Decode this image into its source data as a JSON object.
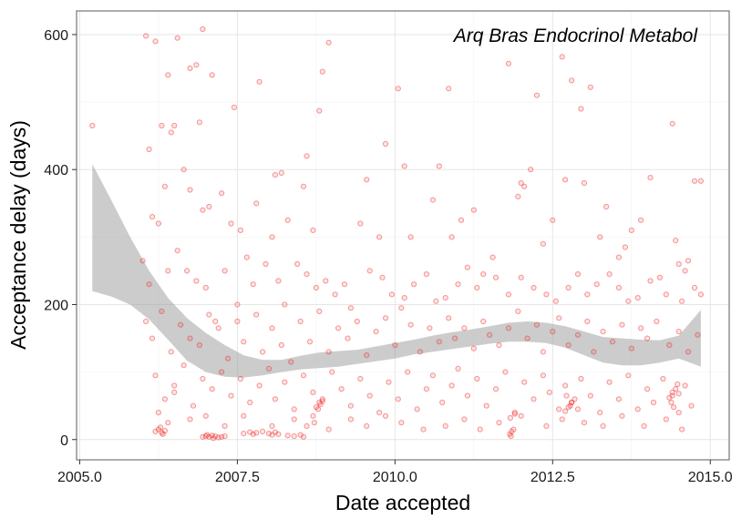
{
  "chart_data": {
    "type": "scatter",
    "title": "Arq Bras Endocrinol Metabol",
    "xlabel": "Date accepted",
    "ylabel": "Acceptance delay (days)",
    "xlim": [
      2004.95,
      2015.3
    ],
    "ylim": [
      -30,
      635
    ],
    "x_ticks": [
      2005.0,
      2007.5,
      2010.0,
      2012.5,
      2015.0
    ],
    "x_tick_labels": [
      "2005.0",
      "2007.5",
      "2010.0",
      "2012.5",
      "2015.0"
    ],
    "y_ticks": [
      0,
      200,
      400,
      600
    ],
    "y_tick_labels": [
      "0",
      "200",
      "400",
      "600"
    ],
    "grid": true,
    "point_color": "#ee2222",
    "band_color": "#999999",
    "points": [
      [
        2005.2,
        465
      ],
      [
        2006.05,
        598
      ],
      [
        2006.2,
        590
      ],
      [
        2006.4,
        540
      ],
      [
        2006.55,
        595
      ],
      [
        2006.95,
        608
      ],
      [
        2006.85,
        555
      ],
      [
        2006.75,
        550
      ],
      [
        2007.1,
        540
      ],
      [
        2007.45,
        492
      ],
      [
        2007.85,
        530
      ],
      [
        2008.85,
        545
      ],
      [
        2008.95,
        588
      ],
      [
        2010.05,
        520
      ],
      [
        2010.85,
        520
      ],
      [
        2011.8,
        557
      ],
      [
        2012.25,
        510
      ],
      [
        2012.65,
        567
      ],
      [
        2012.8,
        532
      ],
      [
        2012.95,
        490
      ],
      [
        2013.1,
        522
      ],
      [
        2014.4,
        468
      ],
      [
        2008.8,
        487
      ],
      [
        2009.85,
        438
      ],
      [
        2010.15,
        405
      ],
      [
        2010.7,
        405
      ],
      [
        2012.15,
        400
      ],
      [
        2014.05,
        388
      ],
      [
        2014.75,
        383
      ],
      [
        2014.85,
        383
      ],
      [
        2013.35,
        345
      ],
      [
        2013.55,
        270
      ],
      [
        2013.9,
        325
      ],
      [
        2014.45,
        295
      ],
      [
        2008.1,
        392
      ],
      [
        2008.2,
        395
      ],
      [
        2006.1,
        430
      ],
      [
        2006.3,
        465
      ],
      [
        2006.45,
        455
      ],
      [
        2006.5,
        465
      ],
      [
        2006.65,
        400
      ],
      [
        2006.9,
        470
      ],
      [
        2006.35,
        375
      ],
      [
        2006.75,
        370
      ],
      [
        2006.95,
        340
      ],
      [
        2007.05,
        345
      ],
      [
        2007.25,
        365
      ],
      [
        2007.4,
        320
      ],
      [
        2007.55,
        310
      ],
      [
        2007.8,
        350
      ],
      [
        2008.05,
        300
      ],
      [
        2008.3,
        325
      ],
      [
        2008.55,
        375
      ],
      [
        2008.7,
        310
      ],
      [
        2008.6,
        420
      ],
      [
        2009.45,
        320
      ],
      [
        2009.55,
        385
      ],
      [
        2009.75,
        300
      ],
      [
        2010.25,
        300
      ],
      [
        2010.6,
        355
      ],
      [
        2010.9,
        300
      ],
      [
        2011.05,
        325
      ],
      [
        2011.25,
        340
      ],
      [
        2011.55,
        270
      ],
      [
        2011.95,
        360
      ],
      [
        2012.0,
        380
      ],
      [
        2012.05,
        375
      ],
      [
        2012.35,
        290
      ],
      [
        2012.5,
        325
      ],
      [
        2012.7,
        385
      ],
      [
        2013.0,
        380
      ],
      [
        2013.25,
        300
      ],
      [
        2013.65,
        285
      ],
      [
        2013.75,
        310
      ],
      [
        2014.2,
        240
      ],
      [
        2014.5,
        260
      ],
      [
        2014.6,
        250
      ],
      [
        2014.65,
        265
      ],
      [
        2006.0,
        265
      ],
      [
        2006.1,
        230
      ],
      [
        2006.15,
        330
      ],
      [
        2006.25,
        320
      ],
      [
        2006.4,
        250
      ],
      [
        2006.55,
        280
      ],
      [
        2006.7,
        250
      ],
      [
        2006.85,
        235
      ],
      [
        2007.0,
        225
      ],
      [
        2007.15,
        175
      ],
      [
        2007.3,
        250
      ],
      [
        2007.5,
        200
      ],
      [
        2007.65,
        270
      ],
      [
        2007.75,
        230
      ],
      [
        2007.95,
        260
      ],
      [
        2008.15,
        235
      ],
      [
        2008.25,
        200
      ],
      [
        2008.45,
        260
      ],
      [
        2008.6,
        245
      ],
      [
        2008.75,
        225
      ],
      [
        2008.9,
        235
      ],
      [
        2009.05,
        215
      ],
      [
        2009.2,
        230
      ],
      [
        2009.3,
        195
      ],
      [
        2009.6,
        250
      ],
      [
        2009.8,
        240
      ],
      [
        2009.95,
        215
      ],
      [
        2010.15,
        210
      ],
      [
        2010.3,
        230
      ],
      [
        2010.5,
        245
      ],
      [
        2010.65,
        205
      ],
      [
        2010.8,
        210
      ],
      [
        2011.0,
        230
      ],
      [
        2011.15,
        255
      ],
      [
        2011.3,
        225
      ],
      [
        2011.4,
        245
      ],
      [
        2011.6,
        240
      ],
      [
        2011.8,
        215
      ],
      [
        2012.0,
        240
      ],
      [
        2012.2,
        225
      ],
      [
        2012.4,
        215
      ],
      [
        2012.55,
        205
      ],
      [
        2012.75,
        225
      ],
      [
        2012.9,
        245
      ],
      [
        2013.05,
        215
      ],
      [
        2013.2,
        230
      ],
      [
        2013.4,
        245
      ],
      [
        2013.55,
        225
      ],
      [
        2013.7,
        205
      ],
      [
        2013.85,
        210
      ],
      [
        2014.05,
        235
      ],
      [
        2014.3,
        215
      ],
      [
        2014.55,
        205
      ],
      [
        2014.75,
        225
      ],
      [
        2014.85,
        215
      ],
      [
        2006.05,
        175
      ],
      [
        2006.15,
        150
      ],
      [
        2006.3,
        190
      ],
      [
        2006.45,
        130
      ],
      [
        2006.6,
        170
      ],
      [
        2006.75,
        150
      ],
      [
        2006.9,
        140
      ],
      [
        2007.05,
        185
      ],
      [
        2007.2,
        165
      ],
      [
        2007.35,
        120
      ],
      [
        2007.5,
        175
      ],
      [
        2007.6,
        145
      ],
      [
        2007.8,
        185
      ],
      [
        2007.9,
        130
      ],
      [
        2008.05,
        165
      ],
      [
        2008.2,
        140
      ],
      [
        2008.35,
        115
      ],
      [
        2008.5,
        175
      ],
      [
        2008.65,
        145
      ],
      [
        2008.8,
        190
      ],
      [
        2008.95,
        130
      ],
      [
        2009.1,
        165
      ],
      [
        2009.25,
        150
      ],
      [
        2009.4,
        175
      ],
      [
        2009.55,
        125
      ],
      [
        2009.7,
        160
      ],
      [
        2009.85,
        180
      ],
      [
        2010.0,
        140
      ],
      [
        2010.1,
        195
      ],
      [
        2010.25,
        170
      ],
      [
        2010.4,
        130
      ],
      [
        2010.55,
        165
      ],
      [
        2010.7,
        145
      ],
      [
        2010.85,
        180
      ],
      [
        2010.95,
        150
      ],
      [
        2011.1,
        165
      ],
      [
        2011.25,
        135
      ],
      [
        2011.4,
        175
      ],
      [
        2011.5,
        155
      ],
      [
        2011.65,
        140
      ],
      [
        2011.8,
        165
      ],
      [
        2011.95,
        190
      ],
      [
        2012.1,
        150
      ],
      [
        2012.25,
        170
      ],
      [
        2012.35,
        130
      ],
      [
        2012.5,
        160
      ],
      [
        2012.6,
        180
      ],
      [
        2012.75,
        140
      ],
      [
        2012.9,
        155
      ],
      [
        2013.05,
        175
      ],
      [
        2013.15,
        130
      ],
      [
        2013.3,
        160
      ],
      [
        2013.45,
        145
      ],
      [
        2013.6,
        170
      ],
      [
        2013.75,
        135
      ],
      [
        2013.9,
        165
      ],
      [
        2014.0,
        150
      ],
      [
        2014.15,
        175
      ],
      [
        2014.35,
        140
      ],
      [
        2014.5,
        160
      ],
      [
        2014.65,
        130
      ],
      [
        2014.8,
        155
      ],
      [
        2006.2,
        95
      ],
      [
        2006.35,
        60
      ],
      [
        2006.5,
        80
      ],
      [
        2006.65,
        110
      ],
      [
        2006.8,
        50
      ],
      [
        2006.95,
        90
      ],
      [
        2007.1,
        75
      ],
      [
        2007.25,
        100
      ],
      [
        2007.4,
        65
      ],
      [
        2007.55,
        90
      ],
      [
        2007.7,
        55
      ],
      [
        2007.85,
        80
      ],
      [
        2008.0,
        105
      ],
      [
        2008.1,
        60
      ],
      [
        2008.25,
        85
      ],
      [
        2008.4,
        45
      ],
      [
        2008.55,
        95
      ],
      [
        2008.7,
        70
      ],
      [
        2008.85,
        60
      ],
      [
        2009.0,
        100
      ],
      [
        2009.15,
        75
      ],
      [
        2009.3,
        50
      ],
      [
        2009.45,
        90
      ],
      [
        2009.6,
        65
      ],
      [
        2009.75,
        40
      ],
      [
        2009.9,
        85
      ],
      [
        2010.05,
        60
      ],
      [
        2010.2,
        100
      ],
      [
        2010.35,
        45
      ],
      [
        2010.5,
        75
      ],
      [
        2010.6,
        95
      ],
      [
        2010.75,
        55
      ],
      [
        2010.9,
        80
      ],
      [
        2011.0,
        105
      ],
      [
        2011.15,
        65
      ],
      [
        2011.3,
        90
      ],
      [
        2011.45,
        50
      ],
      [
        2011.6,
        75
      ],
      [
        2011.75,
        100
      ],
      [
        2011.9,
        40
      ],
      [
        2012.05,
        85
      ],
      [
        2012.2,
        60
      ],
      [
        2012.35,
        95
      ],
      [
        2012.45,
        70
      ],
      [
        2012.6,
        45
      ],
      [
        2012.7,
        80
      ],
      [
        2012.8,
        55
      ],
      [
        2012.95,
        90
      ],
      [
        2013.1,
        65
      ],
      [
        2013.25,
        40
      ],
      [
        2013.4,
        85
      ],
      [
        2013.55,
        60
      ],
      [
        2013.7,
        95
      ],
      [
        2013.85,
        45
      ],
      [
        2014.0,
        75
      ],
      [
        2014.1,
        55
      ],
      [
        2014.25,
        90
      ],
      [
        2014.4,
        65
      ],
      [
        2014.5,
        40
      ],
      [
        2014.6,
        80
      ],
      [
        2014.7,
        50
      ],
      [
        2006.25,
        40
      ],
      [
        2006.4,
        25
      ],
      [
        2006.5,
        70
      ],
      [
        2006.75,
        30
      ],
      [
        2007.0,
        35
      ],
      [
        2007.3,
        20
      ],
      [
        2007.6,
        35
      ],
      [
        2008.05,
        20
      ],
      [
        2008.4,
        30
      ],
      [
        2008.6,
        20
      ],
      [
        2008.95,
        15
      ],
      [
        2009.3,
        30
      ],
      [
        2009.55,
        20
      ],
      [
        2009.85,
        35
      ],
      [
        2010.1,
        25
      ],
      [
        2010.45,
        15
      ],
      [
        2010.8,
        20
      ],
      [
        2011.1,
        30
      ],
      [
        2011.35,
        15
      ],
      [
        2011.65,
        25
      ],
      [
        2012.0,
        35
      ],
      [
        2012.4,
        20
      ],
      [
        2012.65,
        30
      ],
      [
        2013.0,
        25
      ],
      [
        2013.3,
        20
      ],
      [
        2013.6,
        35
      ],
      [
        2013.95,
        20
      ],
      [
        2014.3,
        30
      ],
      [
        2014.55,
        15
      ],
      [
        2006.2,
        12
      ],
      [
        2006.25,
        15
      ],
      [
        2006.3,
        10
      ],
      [
        2006.35,
        13
      ],
      [
        2006.28,
        18
      ],
      [
        2006.32,
        8
      ],
      [
        2006.95,
        4
      ],
      [
        2007.0,
        5
      ],
      [
        2007.05,
        4
      ],
      [
        2007.1,
        6
      ],
      [
        2007.15,
        5
      ],
      [
        2007.2,
        3
      ],
      [
        2007.25,
        4
      ],
      [
        2007.3,
        5
      ],
      [
        2007.02,
        7
      ],
      [
        2007.12,
        2
      ],
      [
        2007.6,
        9
      ],
      [
        2007.7,
        11
      ],
      [
        2007.75,
        8
      ],
      [
        2007.8,
        10
      ],
      [
        2007.9,
        12
      ],
      [
        2008.0,
        9
      ],
      [
        2008.05,
        7
      ],
      [
        2008.1,
        11
      ],
      [
        2008.15,
        8
      ],
      [
        2008.3,
        6
      ],
      [
        2008.4,
        5
      ],
      [
        2008.5,
        7
      ],
      [
        2008.55,
        4
      ],
      [
        2008.75,
        48
      ],
      [
        2008.8,
        55
      ],
      [
        2008.82,
        52
      ],
      [
        2008.78,
        45
      ],
      [
        2008.85,
        57
      ],
      [
        2008.7,
        35
      ],
      [
        2008.72,
        25
      ],
      [
        2011.82,
        8
      ],
      [
        2011.85,
        12
      ],
      [
        2011.88,
        15
      ],
      [
        2011.84,
        5
      ],
      [
        2011.9,
        38
      ],
      [
        2011.83,
        32
      ],
      [
        2012.7,
        42
      ],
      [
        2012.75,
        48
      ],
      [
        2012.8,
        55
      ],
      [
        2012.85,
        60
      ],
      [
        2012.72,
        65
      ],
      [
        2012.9,
        45
      ],
      [
        2012.78,
        50
      ],
      [
        2014.35,
        62
      ],
      [
        2014.4,
        70
      ],
      [
        2014.45,
        75
      ],
      [
        2014.5,
        68
      ],
      [
        2014.38,
        55
      ],
      [
        2014.48,
        82
      ],
      [
        2014.42,
        48
      ]
    ],
    "smooth_band": {
      "x": [
        2005.2,
        2005.5,
        2005.8,
        2006.1,
        2006.4,
        2006.7,
        2007.0,
        2007.3,
        2007.6,
        2007.9,
        2008.2,
        2008.5,
        2008.8,
        2009.1,
        2009.4,
        2009.7,
        2010.0,
        2010.3,
        2010.6,
        2010.9,
        2011.2,
        2011.5,
        2011.8,
        2012.1,
        2012.4,
        2012.7,
        2013.0,
        2013.3,
        2013.6,
        2013.9,
        2014.2,
        2014.5,
        2014.85
      ],
      "lower": [
        220,
        212,
        200,
        178,
        148,
        117,
        100,
        93,
        92,
        95,
        100,
        104,
        106,
        108,
        112,
        116,
        120,
        126,
        130,
        134,
        138,
        142,
        145,
        145,
        143,
        136,
        125,
        114,
        110,
        110,
        114,
        120,
        108
      ],
      "upper": [
        408,
        355,
        300,
        250,
        210,
        180,
        158,
        140,
        125,
        118,
        118,
        124,
        129,
        131,
        133,
        138,
        143,
        148,
        154,
        159,
        163,
        168,
        173,
        175,
        173,
        168,
        160,
        152,
        150,
        148,
        147,
        154,
        192
      ]
    }
  }
}
